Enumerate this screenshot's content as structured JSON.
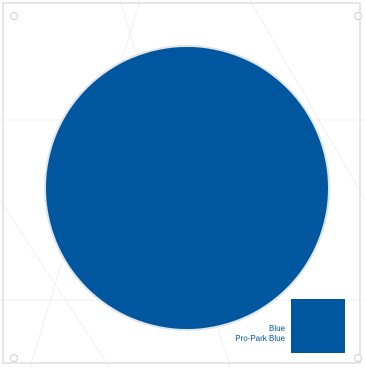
{
  "colors": {
    "primary": "#0057a0",
    "frame": "#e6e6e6",
    "background": "#ffffff"
  },
  "swatch": {
    "color_name": "Blue",
    "product_name": "Pro-Park Blue"
  }
}
